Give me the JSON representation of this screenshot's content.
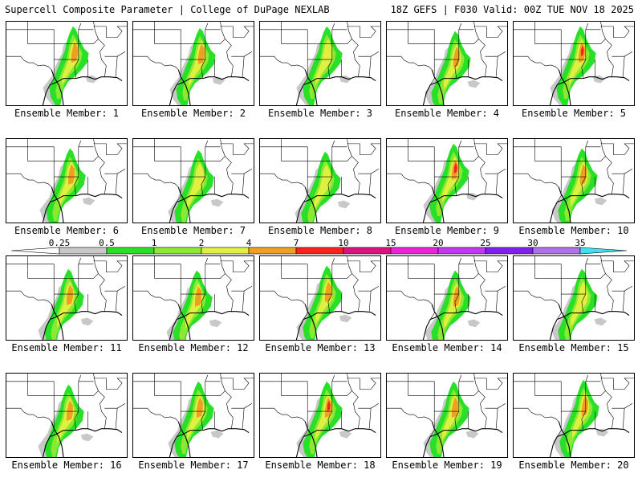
{
  "header": {
    "title_left": "Supercell Composite Parameter | College of DuPage NEXLAB",
    "title_right": "18Z GEFS | F030 Valid: 00Z TUE NOV 18 2025"
  },
  "panels": [
    {
      "member": "Ensemble Member: 1"
    },
    {
      "member": "Ensemble Member: 2"
    },
    {
      "member": "Ensemble Member: 3"
    },
    {
      "member": "Ensemble Member: 4"
    },
    {
      "member": "Ensemble Member: 5"
    },
    {
      "member": "Ensemble Member: 6"
    },
    {
      "member": "Ensemble Member: 7"
    },
    {
      "member": "Ensemble Member: 8"
    },
    {
      "member": "Ensemble Member: 9"
    },
    {
      "member": "Ensemble Member: 10"
    },
    {
      "member": "Ensemble Member: 11"
    },
    {
      "member": "Ensemble Member: 12"
    },
    {
      "member": "Ensemble Member: 13"
    },
    {
      "member": "Ensemble Member: 14"
    },
    {
      "member": "Ensemble Member: 15"
    },
    {
      "member": "Ensemble Member: 16"
    },
    {
      "member": "Ensemble Member: 17"
    },
    {
      "member": "Ensemble Member: 18"
    },
    {
      "member": "Ensemble Member: 19"
    },
    {
      "member": "Ensemble Member: 20"
    }
  ],
  "colorbar": {
    "ticks": [
      "0.25",
      "0.5",
      "1",
      "2",
      "4",
      "7",
      "10",
      "15",
      "20",
      "25",
      "30",
      "35"
    ],
    "colors": [
      "#c8c8c8",
      "#28e028",
      "#8ce830",
      "#e0f040",
      "#f0a020",
      "#ff2020",
      "#e01080",
      "#f020d8",
      "#c038f0",
      "#8020f0",
      "#b070e8",
      "#40e0f0"
    ]
  },
  "map_colors": {
    "light_gray": "#c8c8c8",
    "green": "#28e028",
    "yellow_green": "#8ce830",
    "yellow": "#e0f040",
    "orange": "#f0a020",
    "red": "#ff2020"
  }
}
